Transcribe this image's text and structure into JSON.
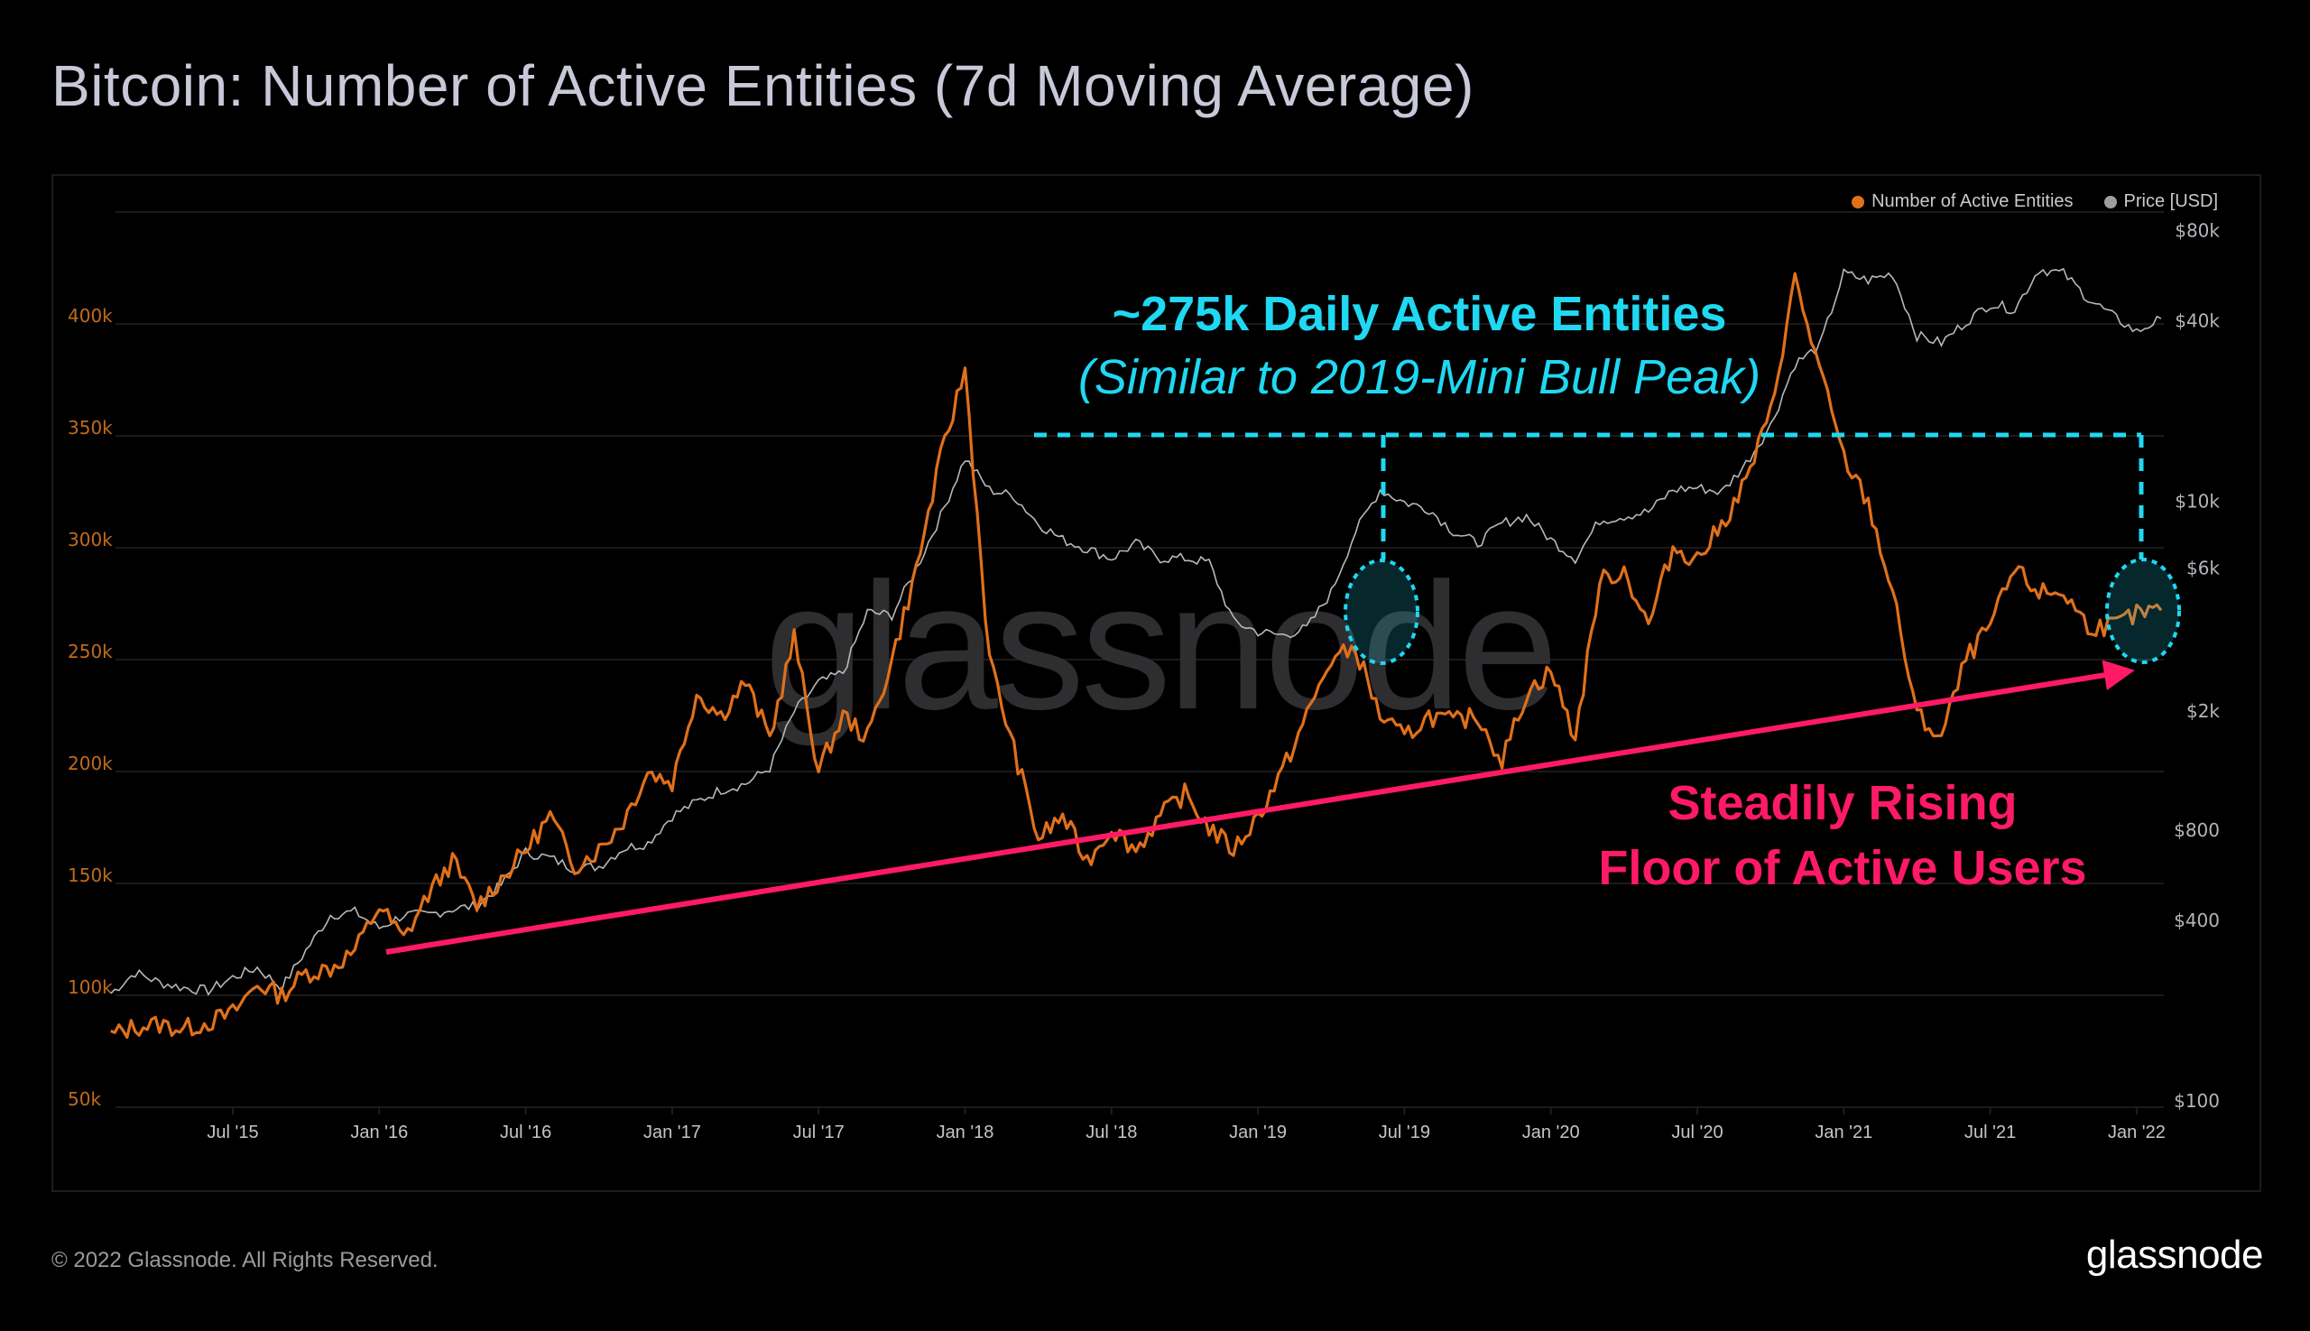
{
  "header": {
    "title": "Bitcoin: Number of Active Entities (7d Moving Average)"
  },
  "footer": {
    "copyright": "© 2022 Glassnode. All Rights Reserved.",
    "logo_text": "glassnode"
  },
  "watermark": "glassnode",
  "colors": {
    "entities": "#e0701a",
    "price": "#b8b8b8",
    "annotation_cyan": "#1fd8f2",
    "annotation_pink": "#ff1a66",
    "grid": "#1a1a1a"
  },
  "annotations": {
    "headline": "~275k Daily Active Entities",
    "subheadline": "(Similar to 2019-Mini Bull Peak)",
    "floor_line1": "Steadily Rising",
    "floor_line2": "Floor of Active Users",
    "reference_level": 275000,
    "trend_start": {
      "date": "2016-01",
      "value": 128000
    },
    "trend_end": {
      "date": "2022-01",
      "value": 250000
    }
  },
  "chart_data": {
    "type": "line",
    "title": "Bitcoin: Number of Active Entities (7d Moving Average)",
    "legend": {
      "position": "top-right",
      "entries": [
        "Number of Active Entities",
        "Price [USD]"
      ]
    },
    "x_ticks": [
      "Jul '15",
      "Jan '16",
      "Jul '16",
      "Jan '17",
      "Jul '17",
      "Jan '18",
      "Jul '18",
      "Jan '19",
      "Jul '19",
      "Jan '20",
      "Jul '20",
      "Jan '21",
      "Jul '21",
      "Jan '22"
    ],
    "y_left": {
      "label": "Number of Active Entities",
      "ticks": [
        "50k",
        "100k",
        "150k",
        "200k",
        "250k",
        "300k",
        "350k",
        "400k"
      ],
      "tick_values": [
        50000,
        100000,
        150000,
        200000,
        250000,
        300000,
        350000,
        400000
      ],
      "range": [
        50000,
        450000
      ],
      "scale": "linear"
    },
    "y_right": {
      "label": "Price [USD]",
      "ticks": [
        "$100",
        "$400",
        "$800",
        "$2k",
        "$6k",
        "$10k",
        "$40k",
        "$80k"
      ],
      "tick_values": [
        100,
        400,
        800,
        2000,
        6000,
        10000,
        40000,
        80000
      ],
      "scale": "log"
    },
    "grid": true,
    "x_start": "2015-02",
    "series": [
      {
        "name": "Number of Active Entities",
        "axis": "left",
        "x_months": [
          0,
          1,
          2,
          3,
          4,
          5,
          6,
          7,
          8,
          9,
          10,
          11,
          12,
          13,
          14,
          15,
          16,
          17,
          18,
          19,
          20,
          21,
          22,
          23,
          24,
          25,
          26,
          27,
          28,
          29,
          30,
          31,
          32,
          33,
          34,
          35,
          36,
          37,
          38,
          39,
          40,
          41,
          42,
          43,
          44,
          45,
          46,
          47,
          48,
          49,
          50,
          51,
          52,
          53,
          54,
          55,
          56,
          57,
          58,
          59,
          60,
          61,
          62,
          63,
          64,
          65,
          66,
          67,
          68,
          69,
          70,
          71,
          72,
          73,
          74,
          75,
          76,
          77,
          78,
          79,
          80,
          81,
          82,
          83,
          84
        ],
        "values": [
          82000,
          86000,
          87000,
          85000,
          88000,
          92000,
          105000,
          100000,
          110000,
          112000,
          120000,
          140000,
          125000,
          145000,
          160000,
          140000,
          152000,
          165000,
          180000,
          158000,
          165000,
          178000,
          200000,
          195000,
          235000,
          225000,
          240000,
          215000,
          260000,
          200000,
          225000,
          215000,
          250000,
          290000,
          340000,
          380000,
          250000,
          210000,
          170000,
          180000,
          160000,
          175000,
          165000,
          180000,
          190000,
          175000,
          165000,
          180000,
          200000,
          225000,
          250000,
          255000,
          225000,
          215000,
          225000,
          222000,
          225000,
          205000,
          235000,
          245000,
          215000,
          285000,
          290000,
          265000,
          300000,
          295000,
          310000,
          330000,
          360000,
          420000,
          380000,
          340000,
          320000,
          280000,
          225000,
          215000,
          250000,
          265000,
          290000,
          280000,
          280000,
          265000,
          265000,
          270000,
          272000
        ]
      },
      {
        "name": "Price [USD]",
        "axis": "right",
        "x_months": [
          0,
          1,
          2,
          3,
          4,
          5,
          6,
          7,
          8,
          9,
          10,
          11,
          12,
          13,
          14,
          15,
          16,
          17,
          18,
          19,
          20,
          21,
          22,
          23,
          24,
          25,
          26,
          27,
          28,
          29,
          30,
          31,
          32,
          33,
          34,
          35,
          36,
          37,
          38,
          39,
          40,
          41,
          42,
          43,
          44,
          45,
          46,
          47,
          48,
          49,
          50,
          51,
          52,
          53,
          54,
          55,
          56,
          57,
          58,
          59,
          60,
          61,
          62,
          63,
          64,
          65,
          66,
          67,
          68,
          69,
          70,
          71,
          72,
          73,
          74,
          75,
          76,
          77,
          78,
          79,
          80,
          81,
          82,
          83,
          84
        ],
        "values": [
          230,
          270,
          250,
          240,
          235,
          260,
          280,
          240,
          320,
          420,
          430,
          380,
          420,
          420,
          440,
          450,
          530,
          680,
          650,
          600,
          610,
          700,
          730,
          900,
          1000,
          1100,
          1150,
          1300,
          2000,
          2500,
          2700,
          4300,
          4200,
          6000,
          9000,
          14000,
          11000,
          10500,
          8500,
          7500,
          7000,
          6500,
          7300,
          6500,
          6500,
          6300,
          4000,
          3700,
          3600,
          3800,
          5000,
          8000,
          11000,
          10000,
          9500,
          8000,
          7300,
          8500,
          9000,
          7500,
          6500,
          8700,
          9000,
          9300,
          11000,
          11200,
          10800,
          13500,
          18000,
          29000,
          33000,
          58000,
          55000,
          58000,
          36000,
          34000,
          40000,
          46000,
          44000,
          60000,
          58000,
          48000,
          42000,
          37000,
          41000
        ]
      }
    ]
  }
}
